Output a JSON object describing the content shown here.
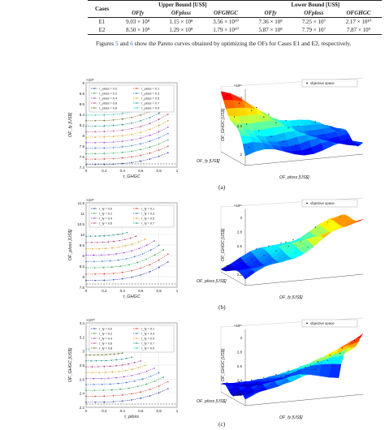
{
  "table": {
    "headers": {
      "cases": "Cases",
      "upper": "Upper Bound [US$]",
      "lower": "Lower Bound [US$]",
      "cols": [
        "OF_{fy}",
        "OF_{ploss}",
        "OF_{GHGC}",
        "OF_{fy}",
        "OF_{ploss}",
        "OF_{GHGC}"
      ]
    },
    "rows": [
      {
        "case": "E1",
        "vals": [
          "9.03 × 10⁸",
          "1.15 × 10⁸",
          "3.56 × 10¹⁰",
          "7.36 × 10⁸",
          "7.25 × 10⁷",
          "2.17 × 10¹⁰"
        ]
      },
      {
        "case": "E2",
        "vals": [
          "8.50 × 10⁸",
          "1.29 × 10⁸",
          "1.79 × 10¹⁰",
          "5.87 × 10⁸",
          "7.79 × 10⁷",
          "7.87 × 10⁹"
        ]
      }
    ]
  },
  "paragraph": {
    "pre": "Figures ",
    "ref1": "5",
    "mid1": " and ",
    "ref2": "6",
    "post": " show the Pareto curves obtained by optimizing the OFs for Cases E1 and E2, respectively."
  },
  "captions": [
    "(a)",
    "(b)",
    "(c)"
  ],
  "panels": {
    "a": {
      "exp": "×10⁸",
      "ylabel": "OF_fy [US$]",
      "xlabel": "τ_GHGC",
      "yticks": [
        "7.4",
        "7.6",
        "7.8",
        "8",
        "8.2",
        "8.4",
        "8.6",
        "8.8",
        "9"
      ],
      "xticks": [
        "0",
        "0.2",
        "0.4",
        "0.6",
        "0.8",
        "1"
      ],
      "legend": [
        "τ_ploss = 0.0",
        "τ_ploss = 0.1",
        "τ_ploss = 0.2",
        "τ_ploss = 0.3",
        "τ_ploss = 0.4",
        "τ_ploss = 0.5",
        "τ_ploss = 0.6",
        "τ_ploss = 0.7",
        "τ_ploss = 0.8",
        "τ_ploss = 0.9"
      ],
      "d3": {
        "legend": "objective space",
        "zlabel": "OF_GHGC [US$]",
        "xlabel": "OF_ploss [US$]",
        "ylabel": "OF_fy [US$]",
        "zticks": [
          "3",
          "2.5",
          "2"
        ],
        "zexp": "×10¹⁰"
      }
    },
    "b": {
      "exp": "×10⁸",
      "ylabel": "OF_ploss [US$]",
      "xlabel": "τ_GHGC",
      "yticks": [
        "7.5",
        "8",
        "8.5",
        "9",
        "9.5",
        "10",
        "10.5",
        "11",
        "11.5"
      ],
      "xticks": [
        "0",
        "0.2",
        "0.4",
        "0.6",
        "0.8",
        "1"
      ],
      "legend": [
        "τ_fy = 0.0",
        "τ_fy = 0.1",
        "τ_fy = 0.2",
        "τ_fy = 0.3",
        "τ_fy = 0.4",
        "τ_fy = 0.5",
        "τ_fy = 0.6",
        "τ_fy = 0.7"
      ],
      "d3": {
        "legend": "objective space",
        "zlabel": "OF_GHGC [US$]",
        "xlabel": "OF_fy [US$]",
        "ylabel": "OF_ploss [US$]",
        "zticks": [
          "3",
          "2.8",
          "2.6",
          "2.4",
          "2.2"
        ],
        "zexp": "×10¹⁰"
      }
    },
    "c": {
      "exp": "×10¹⁰",
      "ylabel": "OF_GHGC [US$]",
      "xlabel": "τ_ploss",
      "yticks": [
        "2.2",
        "2.4",
        "2.6",
        "2.8",
        "3",
        "3.2",
        "3.4"
      ],
      "xticks": [
        "0",
        "0.2",
        "0.4",
        "0.6",
        "0.8",
        "1"
      ],
      "legend": [
        "τ_fy = 0.0",
        "τ_fy = 0.1",
        "τ_fy = 0.2",
        "τ_fy = 0.3",
        "τ_fy = 0.4",
        "τ_fy = 0.5",
        "τ_fy = 0.6",
        "τ_fy = 0.7",
        "τ_fy = 0.8",
        "τ_fy = 0.9"
      ],
      "d3": {
        "legend": "objective space",
        "zlabel": "OF_GHGC [US$]",
        "xlabel": "OF_fy [US$]",
        "ylabel": "OF_ploss [US$]",
        "zticks": [
          "3",
          "2.8",
          "2.6",
          "2.4",
          "2.2"
        ],
        "zexp": "×10¹⁰"
      }
    }
  },
  "colors": [
    "#2b3aa8",
    "#d23b2a",
    "#2aa64a",
    "#2f6fd8",
    "#9a3bd6",
    "#e0a020",
    "#b03a8a",
    "#1e8a8a",
    "#6b6b20",
    "#20c0b0"
  ]
}
